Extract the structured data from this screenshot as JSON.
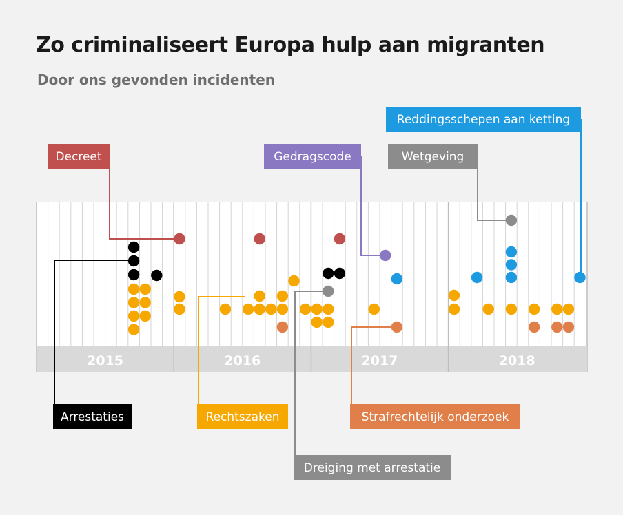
{
  "title": "Zo criminaliseert Europa hulp aan migranten",
  "subtitle": "Door ons gevonden incidenten",
  "chart_data": {
    "type": "scatter",
    "x_unit": "month",
    "x_range": [
      "2015-01",
      "2018-12"
    ],
    "years": [
      "2015",
      "2016",
      "2017",
      "2018"
    ],
    "categories": [
      {
        "name": "Decreet",
        "color": "#c0504d"
      },
      {
        "name": "Gedragscode",
        "color": "#8a78c2"
      },
      {
        "name": "Reddingsschepen aan ketting",
        "color": "#1e9be0"
      },
      {
        "name": "Wetgeving",
        "color": "#8c8c8c"
      },
      {
        "name": "Arrestaties",
        "color": "#000000"
      },
      {
        "name": "Rechtszaken",
        "color": "#f6a800"
      },
      {
        "name": "Dreiging met arrestatie",
        "color": "#8c8c8c"
      },
      {
        "name": "Strafrechtelijk onderzoek",
        "color": "#e07f4a"
      }
    ],
    "incidents": [
      {
        "category": "Decreet",
        "month": "2016-01",
        "count": 1
      },
      {
        "category": "Decreet",
        "month": "2016-08",
        "count": 1
      },
      {
        "category": "Decreet",
        "month": "2017-03",
        "count": 1
      },
      {
        "category": "Gedragscode",
        "month": "2017-07",
        "count": 1
      },
      {
        "category": "Wetgeving",
        "month": "2018-06",
        "count": 1
      },
      {
        "category": "Reddingsschepen aan ketting",
        "month": "2017-08",
        "count": 1
      },
      {
        "category": "Reddingsschepen aan ketting",
        "month": "2018-03",
        "count": 1
      },
      {
        "category": "Reddingsschepen aan ketting",
        "month": "2018-06",
        "count": 3
      },
      {
        "category": "Reddingsschepen aan ketting",
        "month": "2018-12",
        "count": 1
      },
      {
        "category": "Arrestaties",
        "month": "2015-09",
        "count": 3
      },
      {
        "category": "Arrestaties",
        "month": "2015-11",
        "count": 1
      },
      {
        "category": "Arrestaties",
        "month": "2017-02",
        "count": 1
      },
      {
        "category": "Arrestaties",
        "month": "2017-03",
        "count": 1
      },
      {
        "category": "Dreiging met arrestatie",
        "month": "2017-02",
        "count": 1
      },
      {
        "category": "Rechtszaken",
        "month": "2015-09",
        "count": 4
      },
      {
        "category": "Rechtszaken",
        "month": "2015-10",
        "count": 3
      },
      {
        "category": "Rechtszaken",
        "month": "2016-01",
        "count": 2
      },
      {
        "category": "Rechtszaken",
        "month": "2016-05",
        "count": 1
      },
      {
        "category": "Rechtszaken",
        "month": "2016-07",
        "count": 1
      },
      {
        "category": "Rechtszaken",
        "month": "2016-08",
        "count": 2
      },
      {
        "category": "Rechtszaken",
        "month": "2016-09",
        "count": 1
      },
      {
        "category": "Rechtszaken",
        "month": "2016-10",
        "count": 2
      },
      {
        "category": "Rechtszaken",
        "month": "2016-11",
        "count": 1
      },
      {
        "category": "Rechtszaken",
        "month": "2016-12",
        "count": 1
      },
      {
        "category": "Rechtszaken",
        "month": "2017-01",
        "count": 2
      },
      {
        "category": "Rechtszaken",
        "month": "2017-02",
        "count": 2
      },
      {
        "category": "Rechtszaken",
        "month": "2017-06",
        "count": 1
      },
      {
        "category": "Rechtszaken",
        "month": "2018-01",
        "count": 2
      },
      {
        "category": "Rechtszaken",
        "month": "2018-04",
        "count": 1
      },
      {
        "category": "Rechtszaken",
        "month": "2018-06",
        "count": 1
      },
      {
        "category": "Rechtszaken",
        "month": "2018-08",
        "count": 1
      },
      {
        "category": "Rechtszaken",
        "month": "2018-10",
        "count": 1
      },
      {
        "category": "Rechtszaken",
        "month": "2018-11",
        "count": 1
      },
      {
        "category": "Strafrechtelijk onderzoek",
        "month": "2016-10",
        "count": 1
      },
      {
        "category": "Strafrechtelijk onderzoek",
        "month": "2017-08",
        "count": 1
      },
      {
        "category": "Strafrechtelijk onderzoek",
        "month": "2018-08",
        "count": 1
      },
      {
        "category": "Strafrechtelijk onderzoek",
        "month": "2018-10",
        "count": 1
      },
      {
        "category": "Strafrechtelijk onderzoek",
        "month": "2018-11",
        "count": 1
      }
    ],
    "grid": true,
    "legend": "callout labels above and below the timeline"
  }
}
